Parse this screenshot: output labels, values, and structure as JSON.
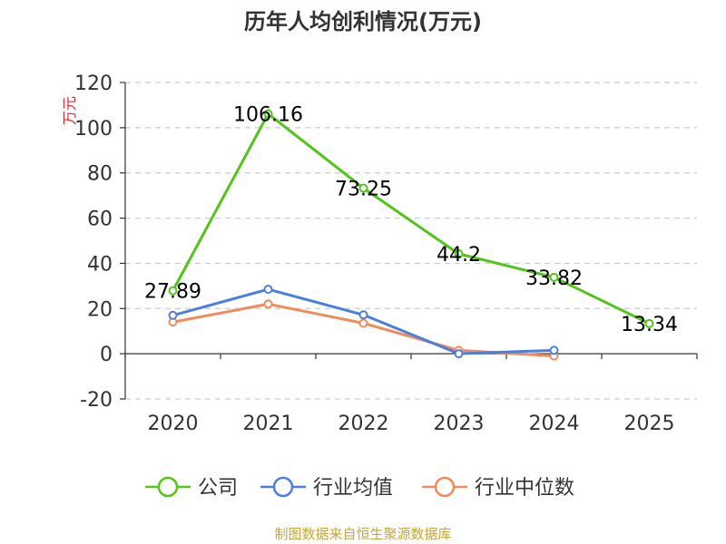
{
  "chart_data": {
    "type": "line",
    "title": "历年人均创利情况(万元)",
    "ylabel": "万元",
    "xlabel": "",
    "categories": [
      "2020",
      "2021",
      "2022",
      "2023",
      "2024",
      "2025"
    ],
    "ylim": [
      -20,
      120
    ],
    "yticks": [
      -20,
      0,
      20,
      40,
      60,
      80,
      100,
      120
    ],
    "grid": true,
    "legend_position": "bottom",
    "series": [
      {
        "name": "公司",
        "color": "#52c41a",
        "values": [
          27.89,
          106.16,
          73.25,
          44.2,
          33.82,
          13.34
        ],
        "show_labels": true
      },
      {
        "name": "行业均值",
        "color": "#4a7fe0",
        "values": [
          17,
          28.5,
          17.2,
          0,
          1.5,
          null
        ],
        "show_labels": false
      },
      {
        "name": "行业中位数",
        "color": "#f28a5a",
        "values": [
          14,
          22,
          13.5,
          1.5,
          -1,
          null
        ],
        "show_labels": false
      }
    ],
    "data_labels": [
      "27.89",
      "106.16",
      "73.25",
      "44.2",
      "33.82",
      "13.34"
    ]
  },
  "footer": {
    "source": "制图数据来自恒生聚源数据库"
  }
}
